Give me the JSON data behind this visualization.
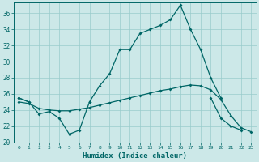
{
  "title": "",
  "xlabel": "Humidex (Indice chaleur)",
  "bg_color": "#cce8e8",
  "grid_color": "#99cccc",
  "line_color": "#006666",
  "x": [
    0,
    1,
    2,
    3,
    4,
    5,
    6,
    7,
    8,
    9,
    10,
    11,
    12,
    13,
    14,
    15,
    16,
    17,
    18,
    19,
    20,
    21,
    22,
    23
  ],
  "line_max": [
    25.5,
    25.0,
    null,
    null,
    null,
    null,
    null,
    25.0,
    27.0,
    28.5,
    31.5,
    31.5,
    33.5,
    34.0,
    34.5,
    35.2,
    37.0,
    34.0,
    31.5,
    28.0,
    25.5,
    null,
    null,
    null
  ],
  "line_min": [
    25.5,
    25.0,
    23.5,
    23.8,
    23.0,
    21.0,
    21.5,
    25.0,
    null,
    null,
    null,
    null,
    null,
    null,
    null,
    null,
    null,
    null,
    null,
    25.5,
    23.0,
    22.0,
    21.5,
    null
  ],
  "line_mean": [
    25.0,
    24.8,
    24.2,
    24.0,
    23.9,
    23.9,
    24.1,
    24.3,
    24.6,
    24.9,
    25.2,
    25.5,
    25.8,
    26.1,
    26.4,
    26.6,
    26.9,
    27.1,
    27.0,
    26.5,
    25.3,
    23.3,
    21.8,
    21.3
  ],
  "ylim": [
    20,
    37
  ],
  "xlim": [
    -0.5,
    23.5
  ],
  "yticks": [
    20,
    22,
    24,
    26,
    28,
    30,
    32,
    34,
    36
  ],
  "xticks": [
    0,
    1,
    2,
    3,
    4,
    5,
    6,
    7,
    8,
    9,
    10,
    11,
    12,
    13,
    14,
    15,
    16,
    17,
    18,
    19,
    20,
    21,
    22,
    23
  ]
}
